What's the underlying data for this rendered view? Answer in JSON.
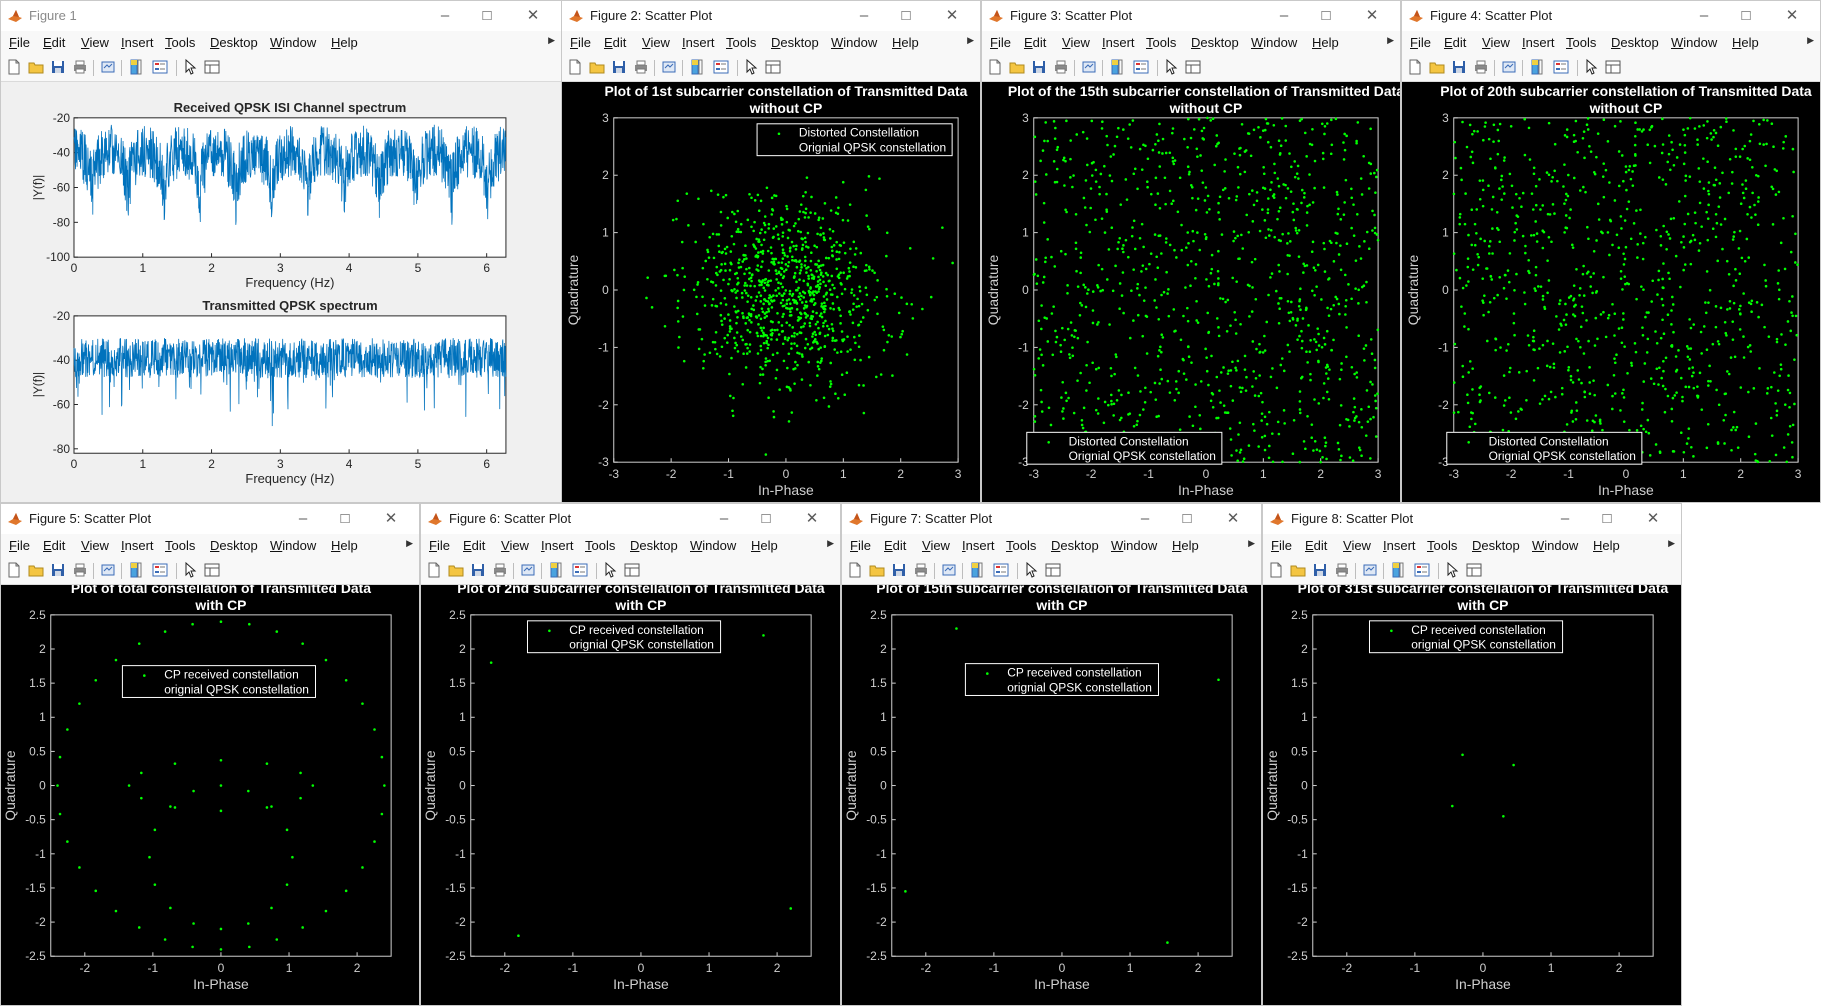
{
  "menu": [
    "File",
    "Edit",
    "View",
    "Insert",
    "Tools",
    "Desktop",
    "Window",
    "Help"
  ],
  "colors": {
    "blue": "#0072BD",
    "green": "#00ff00",
    "black_bg": "#000000",
    "axis_dark": "#262626",
    "axis_light": "#d0d0d0"
  },
  "icons": [
    "new-figure-icon",
    "open-icon",
    "save-icon",
    "print-icon",
    "link-icon",
    "colorbar-icon",
    "legend-icon",
    "pointer-icon",
    "property-editor-icon"
  ],
  "figures": [
    {
      "title": "Figure 1",
      "dark": false,
      "axes": [
        {
          "title": "Received QPSK ISI Channel spectrum",
          "xlabel": "Frequency (Hz)",
          "ylabel": "|Y(f)|",
          "xlim": [
            0,
            6.28
          ],
          "ylim": [
            -100,
            -20
          ],
          "xticks": [
            0,
            1,
            2,
            3,
            4,
            5,
            6
          ],
          "yticks": [
            -20,
            -40,
            -60,
            -80,
            -100
          ]
        },
        {
          "title": "Transmitted QPSK spectrum",
          "xlabel": "Frequency (Hz)",
          "ylabel": "|Y(f)|",
          "xlim": [
            0,
            6.28
          ],
          "ylim": [
            -82,
            -20
          ],
          "xticks": [
            0,
            1,
            2,
            3,
            4,
            5,
            6
          ],
          "yticks": [
            -20,
            -40,
            -60,
            -80
          ]
        }
      ]
    },
    {
      "title": "Figure 2: Scatter Plot",
      "dark": true,
      "title_lines": [
        "Plot of 1st subcarrier constellation of Transmitted Data",
        "without CP"
      ],
      "xlabel": "In-Phase",
      "ylabel": "Quadrature",
      "lim": [
        -3,
        3
      ],
      "xticks": [
        -3,
        -2,
        -1,
        0,
        1,
        2,
        3
      ],
      "yticks": [
        3,
        2,
        1,
        0,
        -1,
        -2,
        -3
      ],
      "legend": [
        "Distorted Constellation",
        "Orignial QPSK constellation"
      ],
      "legend_pos": "top-right"
    },
    {
      "title": "Figure 3: Scatter Plot",
      "dark": true,
      "title_lines": [
        "Plot of the 15th subcarrier constellation of Transmitted Data",
        "without CP"
      ],
      "xlabel": "In-Phase",
      "ylabel": "Quadrature",
      "lim": [
        -3,
        3
      ],
      "xticks": [
        -3,
        -2,
        -1,
        0,
        1,
        2,
        3
      ],
      "yticks": [
        3,
        2,
        1,
        0,
        -1,
        -2,
        -3
      ],
      "legend": [
        "Distorted Constellation",
        "Orignial QPSK constellation"
      ],
      "legend_pos": "bottom-left"
    },
    {
      "title": "Figure 4: Scatter Plot",
      "dark": true,
      "title_lines": [
        "Plot of 20th subcarrier constellation of Transmitted Data",
        "without CP"
      ],
      "xlabel": "In-Phase",
      "ylabel": "Quadrature",
      "lim": [
        -3,
        3
      ],
      "xticks": [
        -3,
        -2,
        -1,
        0,
        1,
        2,
        3
      ],
      "yticks": [
        3,
        2,
        1,
        0,
        -1,
        -2,
        -3
      ],
      "legend": [
        "Distorted Constellation",
        "Orignial QPSK constellation"
      ],
      "legend_pos": "bottom-left"
    },
    {
      "title": "Figure 5: Scatter Plot",
      "dark": true,
      "title_lines": [
        "Plot of total constellation of Transmitted Data",
        "with CP"
      ],
      "xlabel": "In-Phase",
      "ylabel": "Quadrature",
      "lim": [
        -2.5,
        2.5
      ],
      "xticks": [
        -2,
        -1,
        0,
        1,
        2
      ],
      "yticks": [
        2.5,
        2,
        1.5,
        1,
        0.5,
        0,
        -0.5,
        -1,
        -1.5,
        -2,
        -2.5
      ],
      "legend": [
        "CP received constellation",
        "orignial QPSK constellation"
      ],
      "legend_pos": "center"
    },
    {
      "title": "Figure 6: Scatter Plot",
      "dark": true,
      "title_lines": [
        "Plot of 2nd subcarrier constellation of Transmitted Data",
        "with CP"
      ],
      "xlabel": "In-Phase",
      "ylabel": "Quadrature",
      "lim": [
        -2.5,
        2.5
      ],
      "xticks": [
        -2,
        -1,
        0,
        1,
        2
      ],
      "yticks": [
        2.5,
        2,
        1.5,
        1,
        0.5,
        0,
        -0.5,
        -1,
        -1.5,
        -2,
        -2.5
      ],
      "legend": [
        "CP received constellation",
        "orignial QPSK constellation"
      ],
      "legend_pos": "top"
    },
    {
      "title": "Figure 7: Scatter Plot",
      "dark": true,
      "title_lines": [
        "Plot of 15th subcarrier constellation of Transmitted Data",
        "with CP"
      ],
      "xlabel": "In-Phase",
      "ylabel": "Quadrature",
      "lim": [
        -2.5,
        2.5
      ],
      "xticks": [
        -2,
        -1,
        0,
        1,
        2
      ],
      "yticks": [
        2.5,
        2,
        1.5,
        1,
        0.5,
        0,
        -0.5,
        -1,
        -1.5,
        -2,
        -2.5
      ],
      "legend": [
        "CP received constellation",
        "orignial QPSK constellation"
      ],
      "legend_pos": "center"
    },
    {
      "title": "Figure 8: Scatter Plot",
      "dark": true,
      "title_lines": [
        "Plot of 31st subcarrier constellation of Transmitted Data",
        "with CP"
      ],
      "xlabel": "In-Phase",
      "ylabel": "Quadrature",
      "lim": [
        -2.5,
        2.5
      ],
      "xticks": [
        -2,
        -1,
        0,
        1,
        2
      ],
      "yticks": [
        2.5,
        2,
        1.5,
        1,
        0.5,
        0,
        -0.5,
        -1,
        -1.5,
        -2,
        -2.5
      ],
      "legend": [
        "CP received constellation",
        "orignial QPSK constellation"
      ],
      "legend_pos": "top"
    }
  ],
  "chart_data": [
    {
      "type": "line",
      "title": "Received QPSK ISI Channel spectrum",
      "xlabel": "Frequency (Hz)",
      "ylabel": "|Y(f)|",
      "xlim": [
        0,
        6.28
      ],
      "ylim": [
        -100,
        -20
      ],
      "notch_count": 12,
      "series": [
        {
          "envelope_max": -22,
          "typical_floor": -62,
          "notch_min": -92
        }
      ]
    },
    {
      "type": "line",
      "title": "Transmitted QPSK spectrum",
      "xlabel": "Frequency (Hz)",
      "ylabel": "|Y(f)|",
      "xlim": [
        0,
        6.28
      ],
      "ylim": [
        -82,
        -20
      ],
      "series": [
        {
          "envelope_max": -28,
          "typical_floor": -50,
          "min": -80
        }
      ]
    },
    {
      "type": "scatter",
      "title": "Plot of 1st subcarrier constellation of Transmitted Data without CP",
      "distribution": "gaussian",
      "sigma": 0.85,
      "approx_points": 900
    },
    {
      "type": "scatter",
      "title": "Plot of the 15th subcarrier constellation of Transmitted Data without CP",
      "distribution": "uniform",
      "range": [
        -3,
        3
      ],
      "approx_points": 1000
    },
    {
      "type": "scatter",
      "title": "Plot of 20th subcarrier constellation of Transmitted Data without CP",
      "distribution": "uniform",
      "range": [
        -3,
        3
      ],
      "approx_points": 950
    },
    {
      "type": "scatter",
      "title": "Plot of total constellation of Transmitted Data with CP",
      "series": [
        {
          "name": "CP received constellation",
          "pattern": "circle radius 2.4 (36 pts) + circle radius 1.05 centred (0,-1.05) (16 pts) + circle radius 0.5 (8 pts)"
        }
      ]
    },
    {
      "type": "scatter",
      "title": "Plot of 2nd subcarrier constellation of Transmitted Data with CP",
      "series": [
        {
          "name": "CP received constellation",
          "points": [
            [
              -2.2,
              1.8
            ],
            [
              1.8,
              2.2
            ],
            [
              -1.8,
              -2.2
            ],
            [
              2.2,
              -1.8
            ]
          ]
        }
      ]
    },
    {
      "type": "scatter",
      "title": "Plot of 15th subcarrier constellation of Transmitted Data with CP",
      "series": [
        {
          "name": "CP received constellation",
          "points": [
            [
              -1.55,
              2.3
            ],
            [
              2.3,
              1.55
            ],
            [
              -2.3,
              -1.55
            ],
            [
              1.55,
              -2.3
            ]
          ]
        }
      ]
    },
    {
      "type": "scatter",
      "title": "Plot of 31st subcarrier constellation of Transmitted Data with CP",
      "series": [
        {
          "name": "CP received constellation",
          "points": [
            [
              -0.3,
              0.45
            ],
            [
              0.45,
              0.3
            ],
            [
              -0.45,
              -0.3
            ],
            [
              0.3,
              -0.45
            ]
          ]
        }
      ]
    }
  ]
}
